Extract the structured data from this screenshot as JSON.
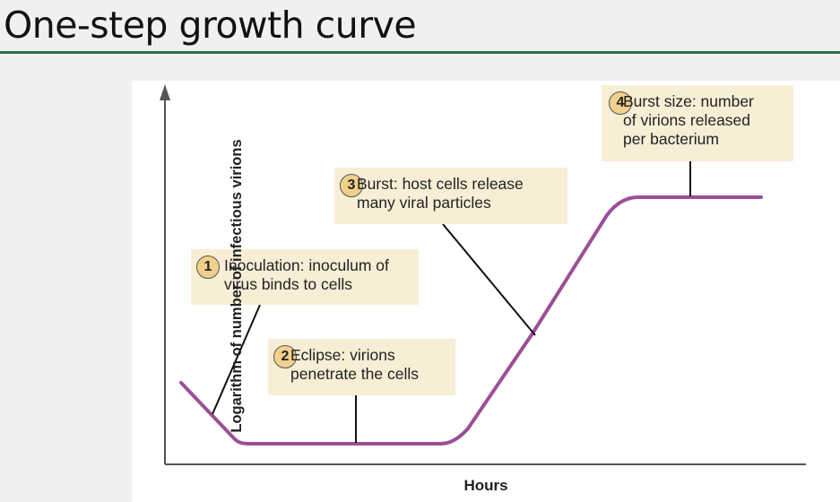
{
  "slide": {
    "title": "One-step growth curve"
  },
  "figure": {
    "y_axis_label": "Logarithm of number of infectious virions",
    "x_axis_label": "Hours",
    "curve_color": "#9b4f96",
    "callouts": [
      {
        "number": "1",
        "text": "Inoculation: inoculum of\nvirus binds to cells"
      },
      {
        "number": "2",
        "text": "Eclipse: virions\npenetrate the cells"
      },
      {
        "number": "3",
        "text": "Burst: host cells release\nmany viral particles"
      },
      {
        "number": "4",
        "text": "Burst size: number\nof virions released\nper bacterium"
      }
    ]
  }
}
